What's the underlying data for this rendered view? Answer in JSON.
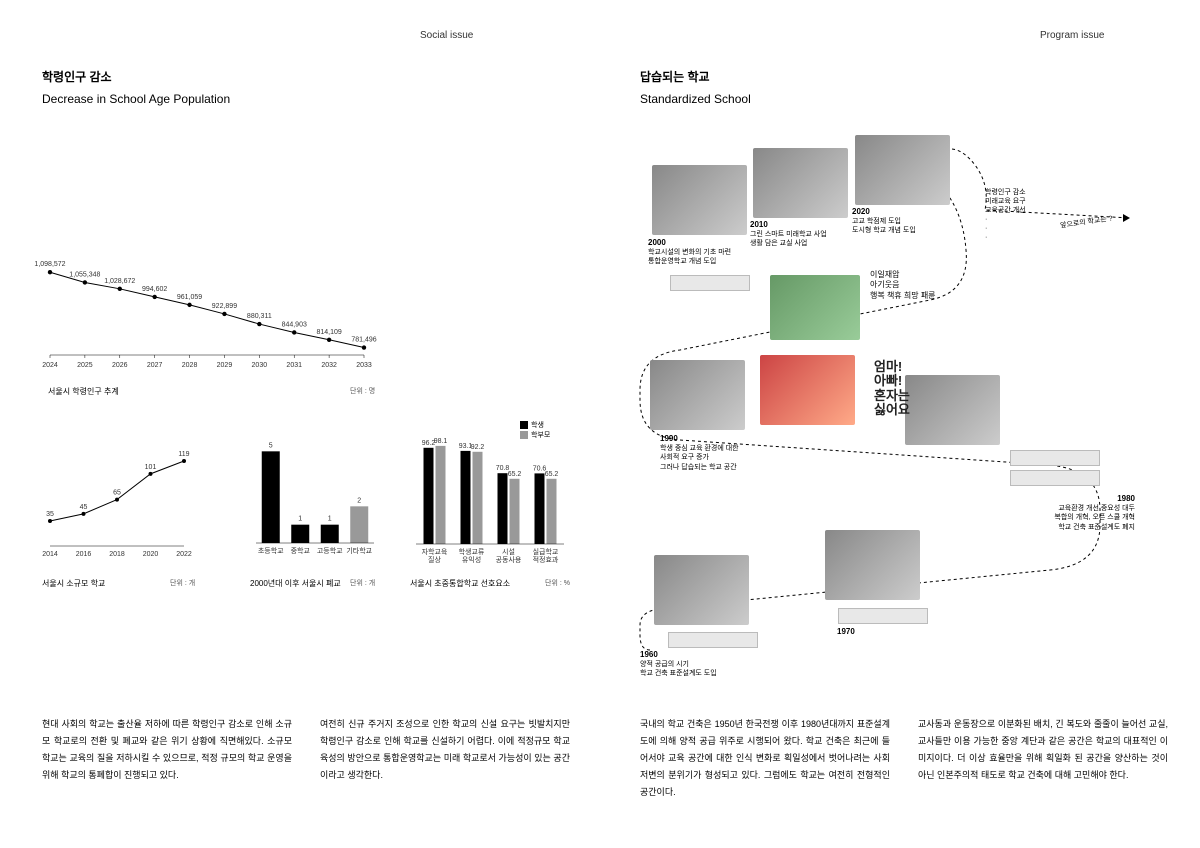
{
  "tabs": {
    "left": "Social issue",
    "right": "Program issue"
  },
  "left_section": {
    "title_kr": "학령인구 감소",
    "title_en": "Decrease in School Age Population",
    "line_chart": {
      "type": "line",
      "categories": [
        "2024",
        "2025",
        "2026",
        "2027",
        "2028",
        "2029",
        "2030",
        "2031",
        "2032",
        "2033"
      ],
      "values": [
        1098572,
        1055348,
        1028672,
        994602,
        961059,
        922899,
        880311,
        844903,
        814109,
        781496
      ],
      "value_labels": [
        "1,098,572",
        "1,055,348",
        "1,028,672",
        "994,602",
        "961,059",
        "922,899",
        "880,311",
        "844,903",
        "814,109",
        "781,496"
      ],
      "ylim": [
        750000,
        1150000
      ],
      "line_color": "#000000",
      "marker": "circle",
      "marker_size": 3,
      "label_fontsize": 7,
      "caption": "서울시 학령인구 추계",
      "unit": "단위 : 명"
    },
    "small_line_chart": {
      "type": "line",
      "categories": [
        "2014",
        "2016",
        "2018",
        "2020",
        "2022"
      ],
      "values": [
        35,
        45,
        65,
        101,
        119
      ],
      "ylim": [
        0,
        140
      ],
      "line_color": "#000000",
      "marker": "circle",
      "caption": "서울시 소규모 학교",
      "unit": "단위 : 개"
    },
    "bar_chart_closed": {
      "type": "bar",
      "categories": [
        "초등학교",
        "중학교",
        "고등학교",
        "기타학교"
      ],
      "values": [
        5,
        1,
        1,
        2
      ],
      "ylim": [
        0,
        6
      ],
      "bar_color": "#000000",
      "alt_bar_color": "#999999",
      "alt_index": 3,
      "caption": "2000년대 이후 서울시 폐교",
      "unit": "단위 : 개"
    },
    "grouped_bar_chart": {
      "type": "grouped-bar",
      "groups": [
        "자학교육 질상",
        "학생교류 유익성",
        "시설 공동사용",
        "실급학교 적정효과"
      ],
      "series": [
        {
          "name": "학생",
          "color": "#000000",
          "values": [
            96.2,
            93.1,
            70.8,
            70.6
          ]
        },
        {
          "name": "학부모",
          "color": "#999999",
          "values": [
            98.1,
            92.2,
            65.2,
            65.2
          ]
        }
      ],
      "ylim": [
        0,
        100
      ],
      "caption": "서울시 초중통합학교 선호요소",
      "unit": "단위 : %",
      "legend": {
        "s1": "학생",
        "s2": "학부모"
      }
    },
    "para1": "현대 사회의 학교는 출산율 저하에 따른 학령인구 감소로 인해 소규모 학교로의 전환 및 폐교와 같은 위기 상황에 직면해있다. 소규모 학교는 교육의 질을 저하시킬 수 있으므로, 적정 규모의 학교 운영을 위해 학교의 통폐합이 진행되고 있다.",
    "para2": "여전히 신규 주거지 조성으로 인한 학교의 신설 요구는 빗발치지만 학령인구 감소로 인해 학교를 신설하기 어렵다. 이에 적정규모 학교 육성의 방안으로 통합운영학교는 미래 학교로서 가능성이 있는 공간이라고 생각한다."
  },
  "right_section": {
    "title_kr": "답습되는 학교",
    "title_en": "Standardized School",
    "timeline": {
      "future_question": "앞으로의 학교는 ?",
      "future_points": "학령인구 감소\n미래교육 요구\n교육공간 개선\n·\n·\n·",
      "events": [
        {
          "year": "1960",
          "desc": "양적 공급의 시기\n학교 건축 표준설계도 도입"
        },
        {
          "year": "1970",
          "desc": ""
        },
        {
          "year": "1980",
          "desc": "교육환경 개선 중요성 대두\n복합의 개혁, 오픈 스쿨 개혁\n학교 건축 표준설계도 폐지"
        },
        {
          "year": "1990",
          "desc": "학생 중심 교육 환경에 대한\n사회적 요구 증가\n그러나 답습되는 학교 공간"
        },
        {
          "year": "2000",
          "desc": "학교시설의 변화의 기초 마련\n통합운영학교 개념 도입"
        },
        {
          "year": "2010",
          "desc": "그린 스마트 미래학교 사업\n생활 담은 교실 사업"
        },
        {
          "year": "2020",
          "desc": "고교 학점제 도입\n도시형 학교 개념 도입"
        }
      ],
      "bubble1": "이일재압\n아기웃음\n행복 책휴 희망 패륜",
      "bubble2": "엄마!\n아빠!\n혼자는\n싫어요"
    },
    "para1": "국내의 학교 건축은 1950년 한국전쟁 이후 1980년대까지 표준설계도에 의해 양적 공급 위주로 시행되어 왔다. 학교 건축은 최근에 들어서야 교육 공간에 대한 인식 변화로 획일성에서 벗어나려는 사회 저변의 분위기가 형성되고 있다. 그럼에도 학교는 여전히 전형적인 공간이다.",
    "para2": "교사동과 운동장으로 이분화된 배치, 긴 복도와 줄줄이 늘어선 교실, 교사들만 이용 가능한 중앙 계단과 같은 공간은 학교의 대표적인 이미지이다. 더 이상 효율만을 위해 획일화 된 공간을 양산하는 것이 아닌 인본주의적 태도로 학교 건축에 대해 고민해야 한다."
  }
}
